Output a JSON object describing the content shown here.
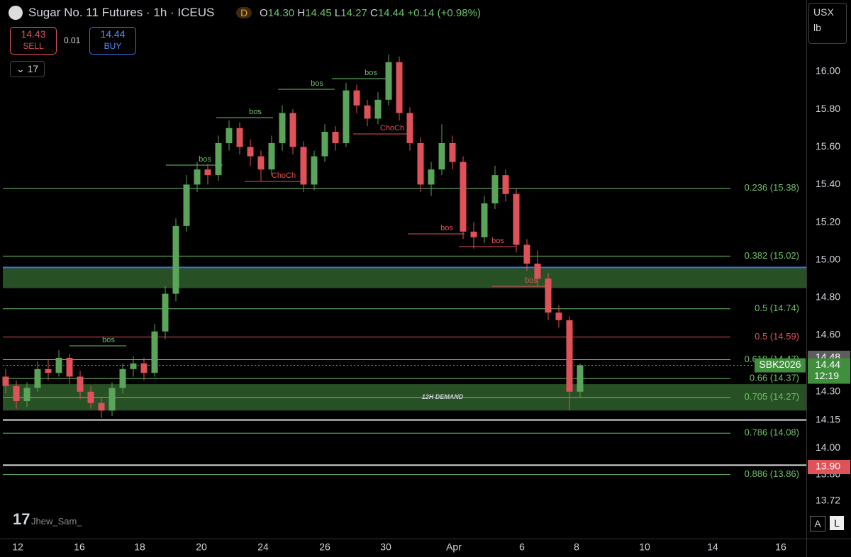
{
  "header": {
    "title": "Sugar No. 11 Futures · 1h · ICEUS",
    "badge": "D",
    "open_label": "O",
    "open": "14.30",
    "high_label": "H",
    "high": "14.45",
    "low_label": "L",
    "low": "14.27",
    "close_label": "C",
    "close": "14.44",
    "change": "+0.14 (+0.98%)",
    "sell_price": "14.43",
    "sell": "SELL",
    "spread": "0.01",
    "buy_price": "14.44",
    "buy": "BUY",
    "indicator_count": "17",
    "currency": "USX",
    "unit": "lb",
    "auto": "A",
    "log": "L",
    "watermark": "Jhew_Sam_"
  },
  "chart_data": {
    "type": "candlestick",
    "up_color": "#5aa55a",
    "down_color": "#e0525a",
    "categories": [
      "12",
      "16",
      "18",
      "20",
      "24",
      "26",
      "30",
      "Apr",
      "6",
      "8",
      "10",
      "14",
      "16"
    ],
    "candles": [
      [
        14.38,
        14.42,
        14.29,
        14.33
      ],
      [
        14.33,
        14.36,
        14.21,
        14.25
      ],
      [
        14.25,
        14.35,
        14.22,
        14.32
      ],
      [
        14.32,
        14.46,
        14.3,
        14.42
      ],
      [
        14.42,
        14.47,
        14.36,
        14.4
      ],
      [
        14.4,
        14.52,
        14.38,
        14.48
      ],
      [
        14.48,
        14.5,
        14.34,
        14.38
      ],
      [
        14.38,
        14.41,
        14.26,
        14.3
      ],
      [
        14.3,
        14.33,
        14.21,
        14.24
      ],
      [
        14.24,
        14.27,
        14.16,
        14.2
      ],
      [
        14.2,
        14.35,
        14.17,
        14.32
      ],
      [
        14.32,
        14.45,
        14.29,
        14.42
      ],
      [
        14.42,
        14.49,
        14.38,
        14.45
      ],
      [
        14.45,
        14.48,
        14.36,
        14.4
      ],
      [
        14.4,
        14.66,
        14.38,
        14.62
      ],
      [
        14.62,
        14.86,
        14.58,
        14.82
      ],
      [
        14.82,
        15.22,
        14.78,
        15.18
      ],
      [
        15.18,
        15.45,
        15.15,
        15.4
      ],
      [
        15.4,
        15.52,
        15.36,
        15.48
      ],
      [
        15.48,
        15.51,
        15.4,
        15.45
      ],
      [
        15.45,
        15.66,
        15.42,
        15.62
      ],
      [
        15.62,
        15.74,
        15.58,
        15.7
      ],
      [
        15.7,
        15.73,
        15.56,
        15.6
      ],
      [
        15.6,
        15.64,
        15.5,
        15.55
      ],
      [
        15.55,
        15.58,
        15.42,
        15.48
      ],
      [
        15.48,
        15.66,
        15.45,
        15.62
      ],
      [
        15.62,
        15.82,
        15.58,
        15.78
      ],
      [
        15.78,
        15.8,
        15.56,
        15.6
      ],
      [
        15.6,
        15.63,
        15.36,
        15.4
      ],
      [
        15.4,
        15.58,
        15.37,
        15.55
      ],
      [
        15.55,
        15.72,
        15.52,
        15.68
      ],
      [
        15.68,
        15.71,
        15.58,
        15.62
      ],
      [
        15.62,
        15.94,
        15.6,
        15.9
      ],
      [
        15.9,
        15.93,
        15.78,
        15.82
      ],
      [
        15.82,
        15.85,
        15.71,
        15.75
      ],
      [
        15.75,
        15.89,
        15.72,
        15.85
      ],
      [
        15.85,
        16.09,
        15.82,
        16.05
      ],
      [
        16.05,
        16.08,
        15.74,
        15.78
      ],
      [
        15.78,
        15.81,
        15.58,
        15.62
      ],
      [
        15.62,
        15.65,
        15.36,
        15.4
      ],
      [
        15.4,
        15.52,
        15.34,
        15.48
      ],
      [
        15.48,
        15.72,
        15.45,
        15.62
      ],
      [
        15.62,
        15.66,
        15.48,
        15.52
      ],
      [
        15.52,
        15.55,
        15.11,
        15.15
      ],
      [
        15.15,
        15.2,
        15.06,
        15.12
      ],
      [
        15.12,
        15.34,
        15.09,
        15.3
      ],
      [
        15.3,
        15.5,
        15.27,
        15.45
      ],
      [
        15.45,
        15.48,
        15.31,
        15.35
      ],
      [
        15.35,
        15.38,
        15.04,
        15.08
      ],
      [
        15.08,
        15.11,
        14.94,
        14.98
      ],
      [
        14.98,
        15.05,
        14.86,
        14.9
      ],
      [
        14.9,
        14.93,
        14.68,
        14.72
      ],
      [
        14.72,
        14.76,
        14.64,
        14.68
      ],
      [
        14.68,
        14.7,
        14.2,
        14.3
      ],
      [
        14.3,
        14.45,
        14.27,
        14.44
      ]
    ],
    "ylim": [
      13.52,
      16.38
    ],
    "yticks": [
      {
        "value": 16,
        "label": "16.00"
      },
      {
        "value": 15.8,
        "label": "15.80"
      },
      {
        "value": 15.6,
        "label": "15.60"
      },
      {
        "value": 15.4,
        "label": "15.40"
      },
      {
        "value": 15.2,
        "label": "15.20"
      },
      {
        "value": 15,
        "label": "15.00"
      },
      {
        "value": 14.8,
        "label": "14.80"
      },
      {
        "value": 14.6,
        "label": "14.60"
      },
      {
        "value": 14.3,
        "label": "14.30"
      },
      {
        "value": 14.15,
        "label": "14.15"
      },
      {
        "value": 14,
        "label": "14.00"
      },
      {
        "value": 13.86,
        "label": "13.86"
      },
      {
        "value": 13.72,
        "label": "13.72"
      }
    ],
    "fib_levels": [
      {
        "label": "0.236 (15.38)",
        "value": 15.38,
        "color": "#6fbf6a"
      },
      {
        "label": "0.382 (15.02)",
        "value": 15.02,
        "color": "#6fbf6a"
      },
      {
        "label": "0.5 (14.74)",
        "value": 14.74,
        "color": "#6fbf6a"
      },
      {
        "label": "0.5 (14.59)",
        "value": 14.59,
        "color": "#e0525a"
      },
      {
        "label": "0.618 (14.47)",
        "value": 14.47,
        "color": "#6fbf6a"
      },
      {
        "label": "0.66 (14.37)",
        "value": 14.37,
        "color": "#6fbf6a"
      },
      {
        "label": "0.705 (14.27)",
        "value": 14.27,
        "color": "#6fbf6a"
      },
      {
        "label": "0.786 (14.08)",
        "value": 14.08,
        "color": "#6fbf6a"
      },
      {
        "label": "0.886 (13.86)",
        "value": 13.86,
        "color": "#6fbf6a"
      }
    ],
    "zones": [
      {
        "from": 14.85,
        "to": 14.96,
        "color": "#2f5e2c"
      },
      {
        "from": 14.2,
        "to": 14.34,
        "color": "#2f5e2c",
        "label": "12H DEMAND"
      }
    ],
    "hlines": [
      14.15,
      13.91
    ],
    "structure_labels": [
      "bos",
      "bos",
      "bos",
      "bos",
      "bos",
      "bos",
      "bos",
      "bos",
      "ChoCh",
      "ChoCh"
    ],
    "price_tags": [
      {
        "value": 14.48,
        "label": "14.48",
        "color": "#5d5d5d"
      },
      {
        "value": 14.44,
        "label": "14.44",
        "color": "#3f8f3c",
        "symbol": "SBK2026",
        "countdown": "12:19"
      },
      {
        "value": 13.9,
        "label": "13.90",
        "color": "#e0525a"
      }
    ]
  }
}
